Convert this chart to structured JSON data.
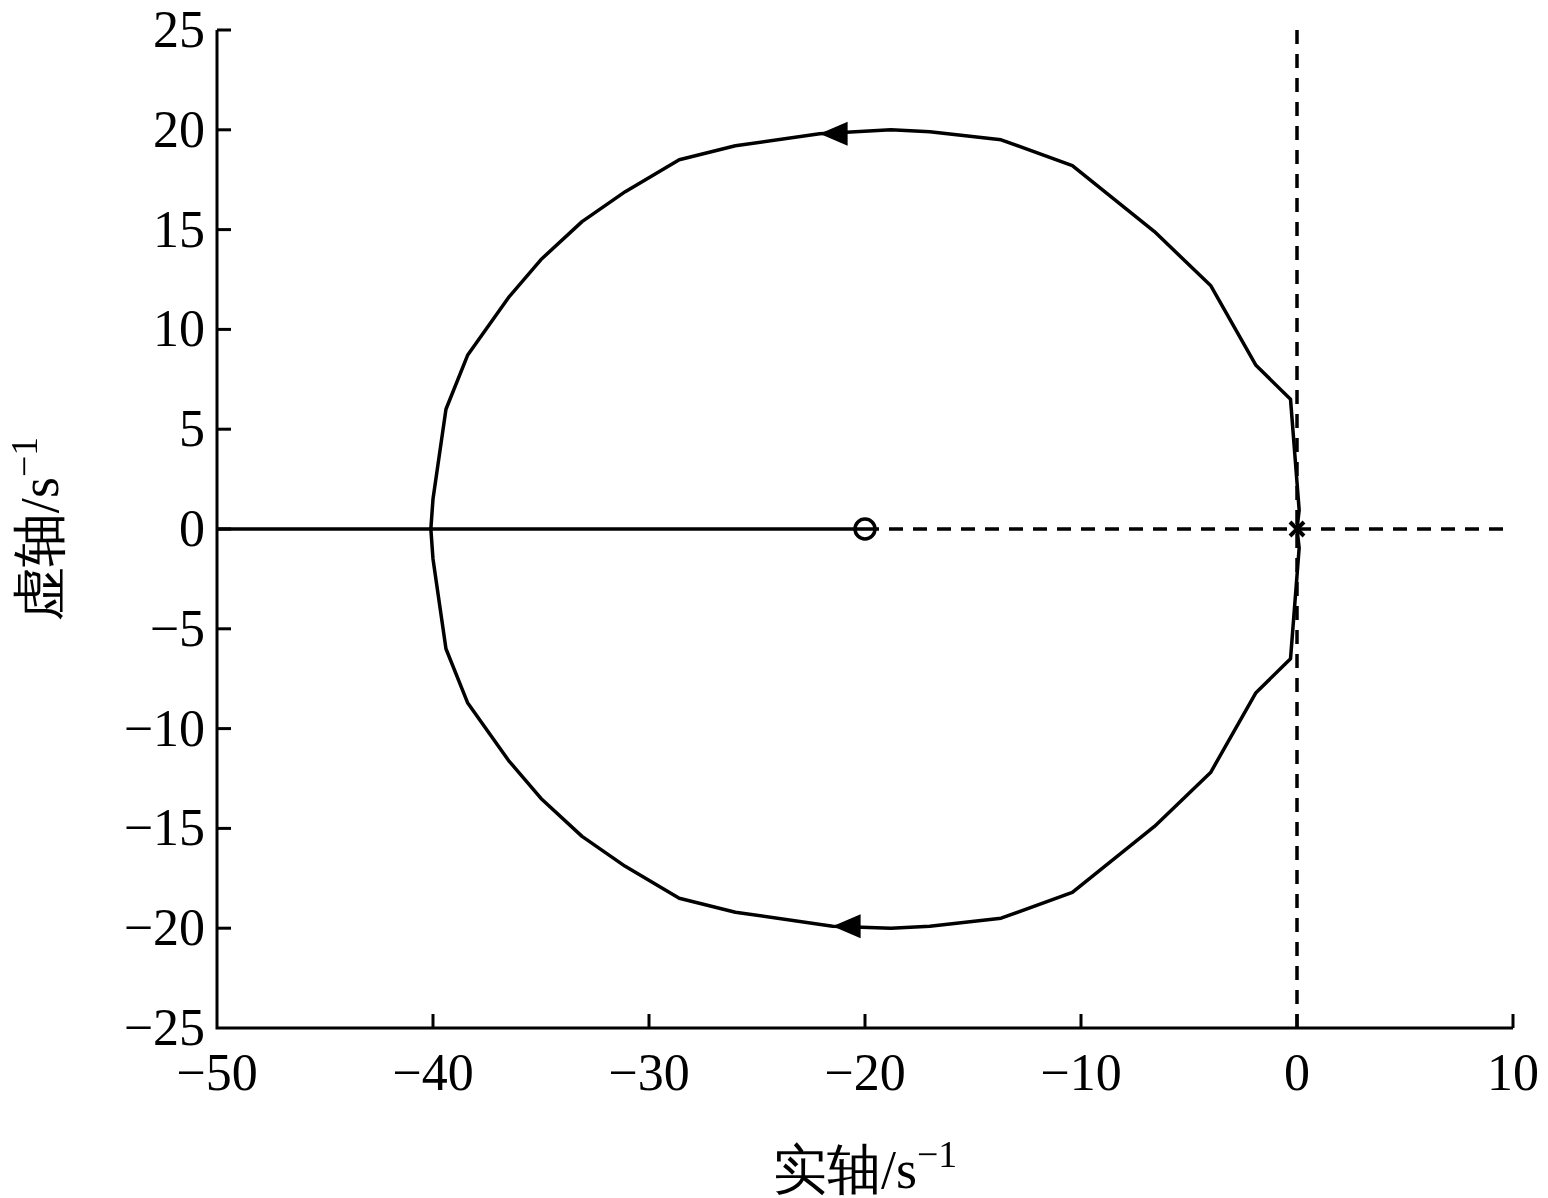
{
  "chart_data": {
    "type": "line",
    "xlabel": "实轴/s$^{−1}$",
    "ylabel": "虚轴/s$^{−1}$",
    "xlim": [
      -50,
      10
    ],
    "xticks": [
      -50,
      -40,
      -30,
      -20,
      -10,
      0,
      10
    ],
    "ylim": [
      -25,
      25
    ],
    "yticks": [
      -25,
      -20,
      -15,
      -10,
      -5,
      0,
      5,
      10,
      15,
      20,
      25
    ],
    "ref_lines": [
      {
        "axis": "x",
        "value": 0,
        "line_style": "dashed",
        "color": "#000000"
      }
    ],
    "series": [
      {
        "color": "#000000",
        "x": [
          0,
          0.1,
          -0.3,
          -1.9,
          -4.0,
          -6.6,
          -10.4,
          -13.7,
          -17.0,
          -18.8,
          -22.1,
          -26.0,
          -28.6,
          -31.1,
          -33.1,
          -35.0,
          -36.5,
          -38.4,
          -39.4,
          -40.0,
          -40.1,
          -50
        ],
        "values": [
          0,
          0.95,
          6.5,
          8.2,
          12.2,
          14.9,
          18.2,
          19.5,
          19.9,
          20.0,
          19.8,
          19.2,
          18.5,
          16.9,
          15.4,
          13.5,
          11.6,
          8.7,
          6.0,
          1.5,
          0,
          0
        ]
      },
      {
        "color": "#000000",
        "x": [
          0,
          0.1,
          -0.3,
          -1.9,
          -4.0,
          -6.6,
          -10.4,
          -13.7,
          -17.0,
          -18.8,
          -21.5,
          -26.0,
          -28.6,
          -31.1,
          -33.1,
          -35.0,
          -36.5,
          -38.4,
          -39.4,
          -40.0,
          -40.1,
          -20
        ],
        "values": [
          0,
          -0.95,
          -6.5,
          -8.2,
          -12.2,
          -14.9,
          -18.2,
          -19.5,
          -19.9,
          -20.0,
          -19.9,
          -19.2,
          -18.5,
          -16.9,
          -15.4,
          -13.5,
          -11.6,
          -8.7,
          -6.0,
          -1.5,
          0,
          0
        ]
      },
      {
        "color": "#000000",
        "line_style": "dashed",
        "x": [
          -20,
          10
        ],
        "values": [
          0,
          0
        ]
      },
      {
        "type": "scatter",
        "color": "#000000",
        "marker": "circle",
        "x": [
          -20
        ],
        "values": [
          0
        ]
      },
      {
        "type": "scatter",
        "color": "#000000",
        "marker": "cross",
        "x": [
          0
        ],
        "values": [
          0
        ]
      }
    ]
  }
}
